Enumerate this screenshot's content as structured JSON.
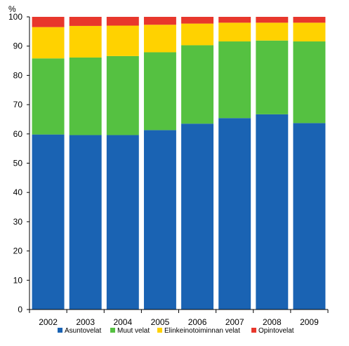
{
  "chart_data": {
    "type": "bar",
    "stacked": true,
    "unit_label": "%",
    "categories": [
      "2002",
      "2003",
      "2004",
      "2005",
      "2006",
      "2007",
      "2008",
      "2009"
    ],
    "series": [
      {
        "name": "Asuntovelat",
        "color": "#1a63b3",
        "values": [
          59.8,
          59.6,
          59.6,
          61.3,
          63.5,
          65.4,
          66.7,
          63.7
        ]
      },
      {
        "name": "Muut velat",
        "color": "#55c141",
        "values": [
          26.0,
          26.5,
          27.0,
          26.6,
          26.8,
          26.2,
          25.2,
          27.9
        ]
      },
      {
        "name": "Elinkeinotoiminnan velat",
        "color": "#ffd200",
        "values": [
          10.7,
          10.8,
          10.4,
          9.4,
          7.4,
          6.4,
          6.1,
          6.4
        ]
      },
      {
        "name": "Opintovelat",
        "color": "#e8372c",
        "values": [
          3.5,
          3.1,
          3.0,
          2.7,
          2.3,
          2.0,
          2.0,
          2.0
        ]
      }
    ],
    "yticks": [
      0,
      10,
      20,
      30,
      40,
      50,
      60,
      70,
      80,
      90,
      100
    ],
    "ylim": [
      0,
      100
    ],
    "grid": false,
    "legend_position": "bottom"
  }
}
